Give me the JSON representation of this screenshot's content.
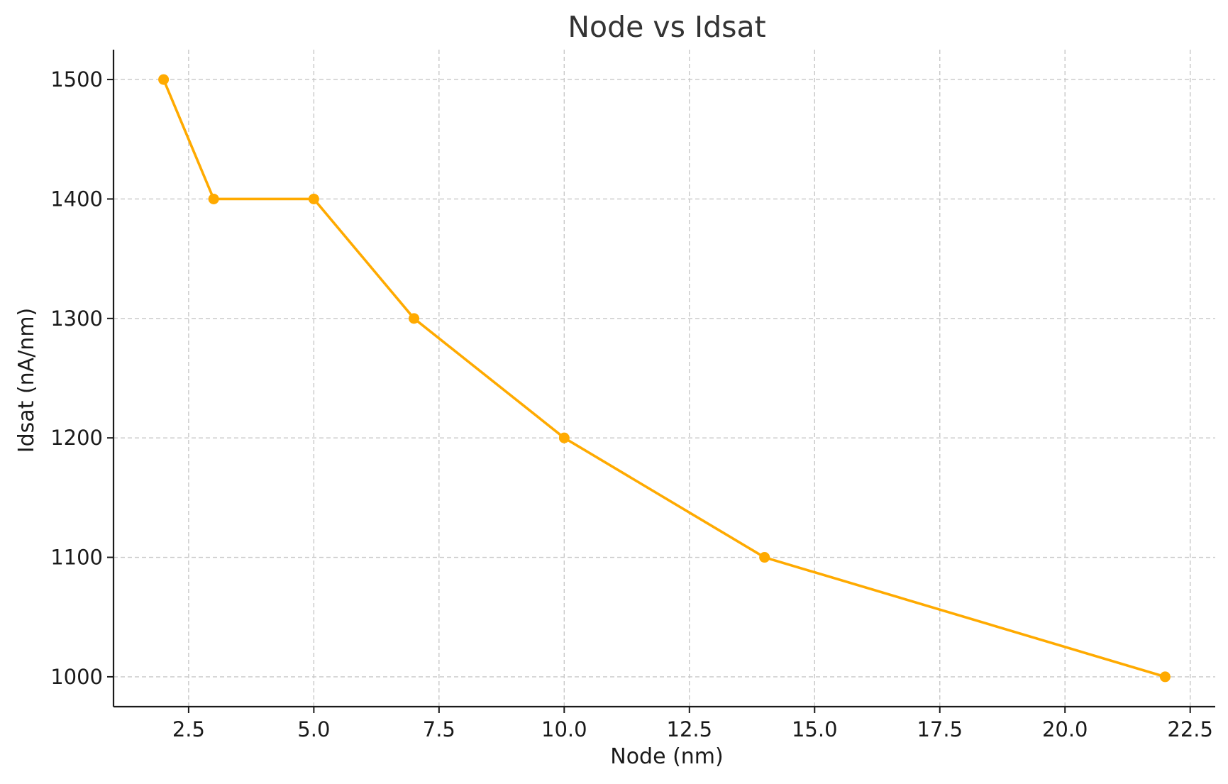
{
  "chart_data": {
    "type": "line",
    "title": "Node vs Idsat",
    "xlabel": "Node (nm)",
    "ylabel": "Idsat (nA/nm)",
    "xlim": [
      1.0,
      23.0
    ],
    "ylim": [
      975,
      1525
    ],
    "xticks": [
      2.5,
      5.0,
      7.5,
      10.0,
      12.5,
      15.0,
      17.5,
      20.0,
      22.5
    ],
    "xtick_labels": [
      "2.5",
      "5.0",
      "7.5",
      "10.0",
      "12.5",
      "15.0",
      "17.5",
      "20.0",
      "22.5"
    ],
    "yticks": [
      1000,
      1100,
      1200,
      1300,
      1400,
      1500
    ],
    "ytick_labels": [
      "1000",
      "1100",
      "1200",
      "1300",
      "1400",
      "1500"
    ],
    "grid": true,
    "series": [
      {
        "x": [
          2,
          3,
          5,
          7,
          10,
          14,
          22
        ],
        "y": [
          1500,
          1400,
          1400,
          1300,
          1200,
          1100,
          1000
        ],
        "color": "#FFAA00",
        "marker": "circle"
      }
    ]
  }
}
